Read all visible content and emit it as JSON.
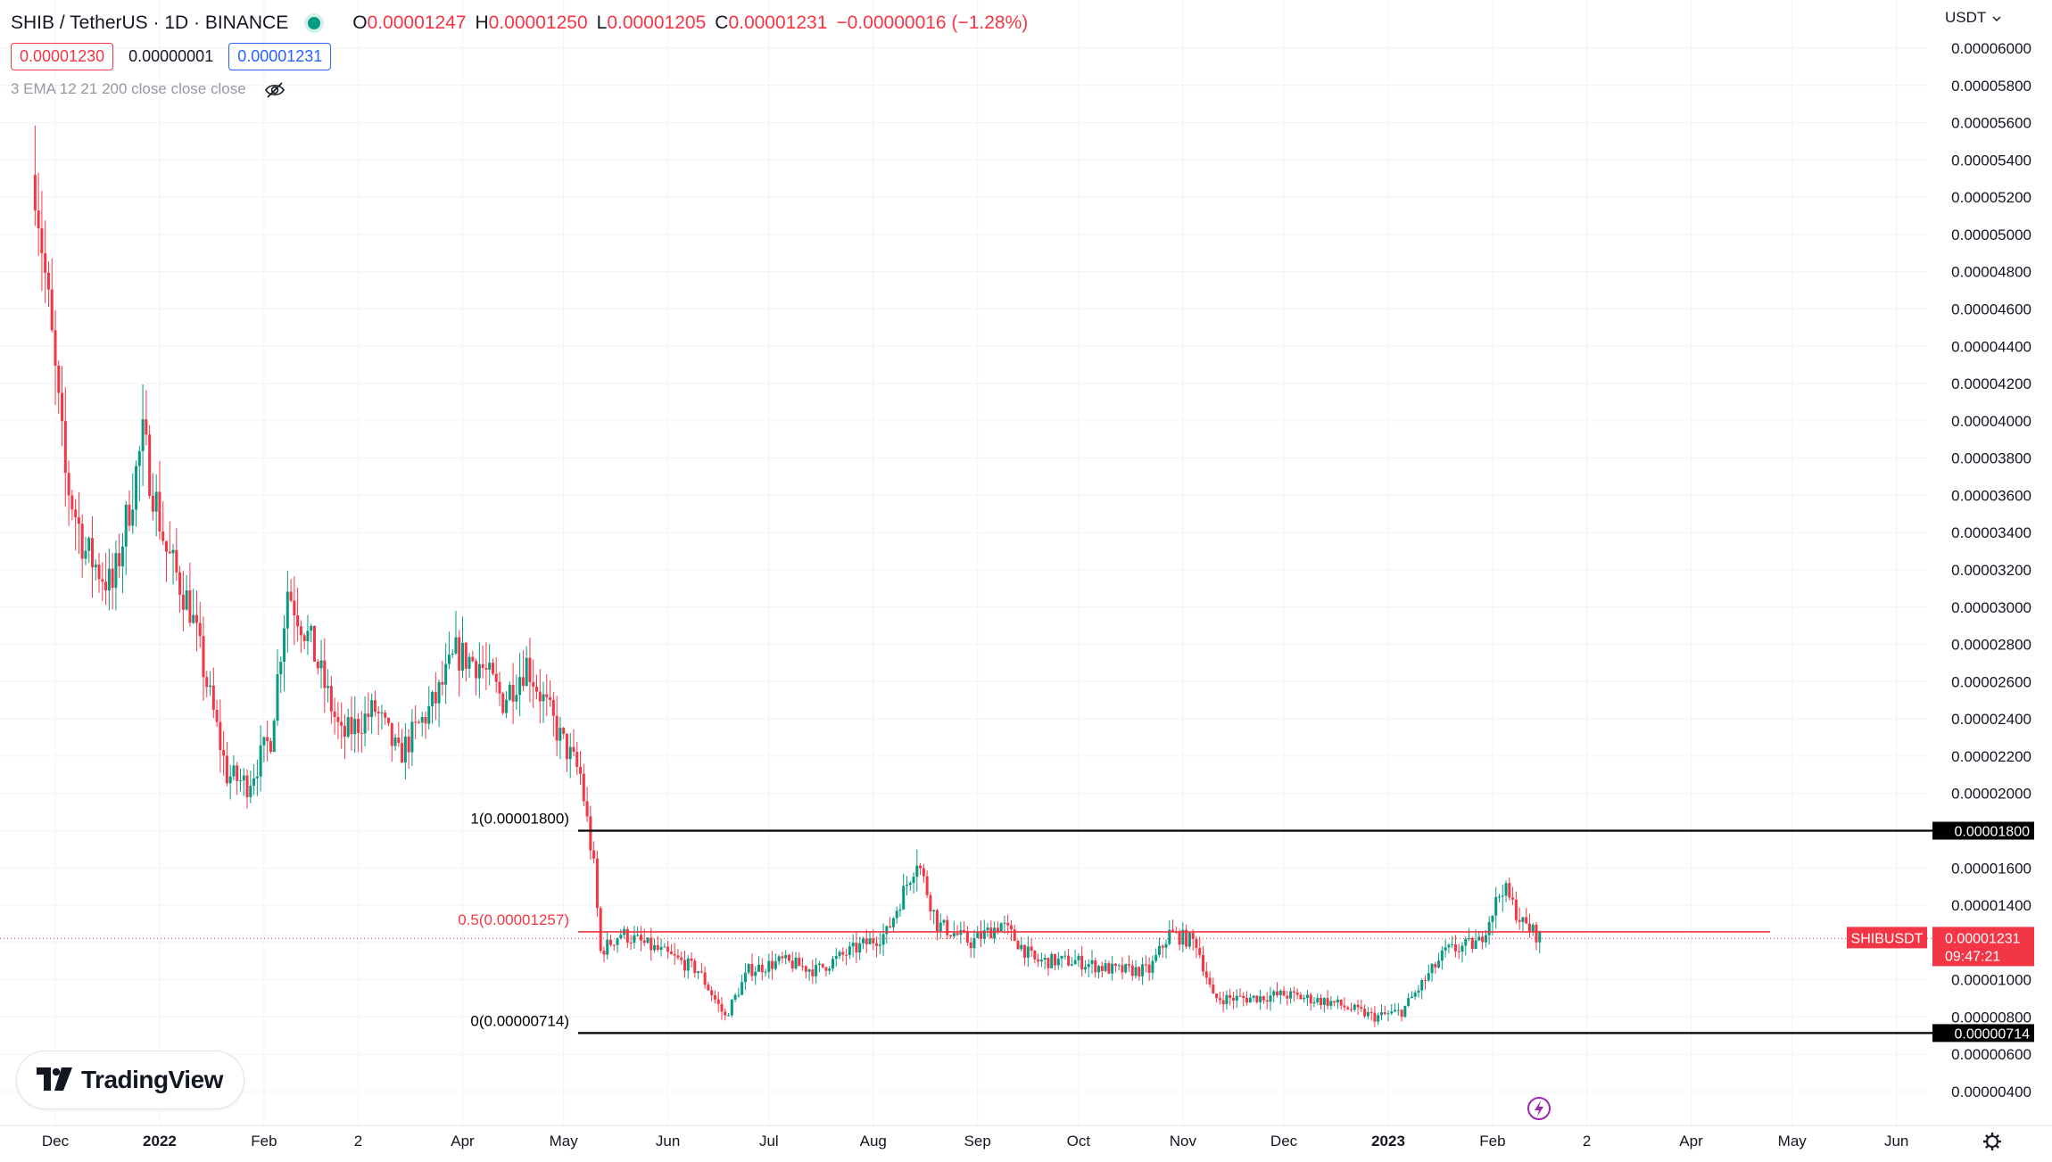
{
  "header": {
    "symbol": "SHIB / TetherUS · 1D · BINANCE",
    "o_label": "O",
    "o": "0.00001247",
    "h_label": "H",
    "h": "0.00001250",
    "l_label": "L",
    "l": "0.00001205",
    "c_label": "C",
    "c": "0.00001231",
    "change": "−0.00000016 (−1.28%)",
    "bid": "0.00001230",
    "spread": "0.00000001",
    "ask": "0.00001231",
    "indicator": "3 EMA 12 21 200 close close close",
    "eye_icon": "eye-off-icon",
    "status_icon": "market-open-dot-icon"
  },
  "currency": "USDT",
  "currency_icon": "chevron-down-icon",
  "branding": {
    "logo_text": "TradingView",
    "logo_icon": "tradingview-logo-icon"
  },
  "bottom_icons": {
    "replay": "lightning-icon",
    "settings": "gear-icon"
  },
  "colors": {
    "up": "#089981",
    "down": "#f23645",
    "fib_line": "#000000",
    "fib_mid": "#f23645",
    "blue": "#2962ff"
  },
  "chart_data": {
    "type": "candlestick",
    "y_axis_labels": [
      "0.00006000",
      "0.00005800",
      "0.00005600",
      "0.00005400",
      "0.00005200",
      "0.00005000",
      "0.00004800",
      "0.00004600",
      "0.00004400",
      "0.00004200",
      "0.00004000",
      "0.00003800",
      "0.00003600",
      "0.00003400",
      "0.00003200",
      "0.00003000",
      "0.00002800",
      "0.00002600",
      "0.00002400",
      "0.00002200",
      "0.00002000",
      "0.00001800",
      "0.00001600",
      "0.00001400",
      "0.00001200",
      "0.00001000",
      "0.00000800",
      "0.00000600",
      "0.00000400"
    ],
    "x_axis_labels": [
      "Dec",
      "2022",
      "Feb",
      "2",
      "Apr",
      "May",
      "Jun",
      "Jul",
      "Aug",
      "Sep",
      "Oct",
      "Nov",
      "Dec",
      "2023",
      "Feb",
      "2",
      "Apr",
      "May",
      "Jun"
    ],
    "ylim": [
      3.2e-06,
      6.3e-06
    ],
    "fib_levels": [
      {
        "label": "1(0.00001800)",
        "value": 1.8e-05,
        "tag": "0.00001800"
      },
      {
        "label": "0.5(0.00001257)",
        "value": 1.257e-05
      },
      {
        "label": "0(0.00000714)",
        "value": 7.14e-06,
        "tag": "0.00000714"
      }
    ],
    "last_price": {
      "symbol": "SHIBUSDT",
      "price": "0.00001231",
      "countdown": "09:47:21"
    },
    "ohlc_path": [
      [
        "2021-11-25",
        5.32e-05
      ],
      [
        "2021-12-04",
        3.7e-05
      ],
      [
        "2021-12-10",
        3.3e-05
      ],
      [
        "2021-12-18",
        3.1e-05
      ],
      [
        "2021-12-27",
        3.9e-05
      ],
      [
        "2022-01-03",
        3.3e-05
      ],
      [
        "2022-01-10",
        3e-05
      ],
      [
        "2022-01-21",
        2.1e-05
      ],
      [
        "2022-01-27",
        2.05e-05
      ],
      [
        "2022-02-03",
        2.3e-05
      ],
      [
        "2022-02-08",
        3.1e-05
      ],
      [
        "2022-02-15",
        2.8e-05
      ],
      [
        "2022-02-24",
        2.3e-05
      ],
      [
        "2022-03-06",
        2.45e-05
      ],
      [
        "2022-03-13",
        2.2e-05
      ],
      [
        "2022-03-24",
        2.5e-05
      ],
      [
        "2022-03-30",
        2.75e-05
      ],
      [
        "2022-04-06",
        2.7e-05
      ],
      [
        "2022-04-13",
        2.5e-05
      ],
      [
        "2022-04-20",
        2.7e-05
      ],
      [
        "2022-04-30",
        2.3e-05
      ],
      [
        "2022-05-06",
        2.1e-05
      ],
      [
        "2022-05-10",
        1.6e-05
      ],
      [
        "2022-05-12",
        1.15e-05
      ],
      [
        "2022-05-18",
        1.25e-05
      ],
      [
        "2022-05-30",
        1.15e-05
      ],
      [
        "2022-06-10",
        1.05e-05
      ],
      [
        "2022-06-18",
        8e-06
      ],
      [
        "2022-06-25",
        1.05e-05
      ],
      [
        "2022-07-05",
        1.1e-05
      ],
      [
        "2022-07-15",
        1.05e-05
      ],
      [
        "2022-07-25",
        1.15e-05
      ],
      [
        "2022-08-05",
        1.25e-05
      ],
      [
        "2022-08-14",
        1.65e-05
      ],
      [
        "2022-08-20",
        1.3e-05
      ],
      [
        "2022-08-30",
        1.2e-05
      ],
      [
        "2022-09-08",
        1.3e-05
      ],
      [
        "2022-09-18",
        1.1e-05
      ],
      [
        "2022-09-30",
        1.1e-05
      ],
      [
        "2022-10-12",
        1.05e-05
      ],
      [
        "2022-10-22",
        1.05e-05
      ],
      [
        "2022-10-28",
        1.25e-05
      ],
      [
        "2022-11-05",
        1.2e-05
      ],
      [
        "2022-11-10",
        9e-06
      ],
      [
        "2022-11-20",
        9e-06
      ],
      [
        "2022-12-01",
        9.2e-06
      ],
      [
        "2022-12-15",
        8.8e-06
      ],
      [
        "2022-12-28",
        8e-06
      ],
      [
        "2023-01-05",
        8.3e-06
      ],
      [
        "2023-01-12",
        1e-05
      ],
      [
        "2023-01-18",
        1.15e-05
      ],
      [
        "2023-01-28",
        1.2e-05
      ],
      [
        "2023-02-04",
        1.5e-05
      ],
      [
        "2023-02-10",
        1.3e-05
      ],
      [
        "2023-02-15",
        1.23e-05
      ]
    ]
  }
}
